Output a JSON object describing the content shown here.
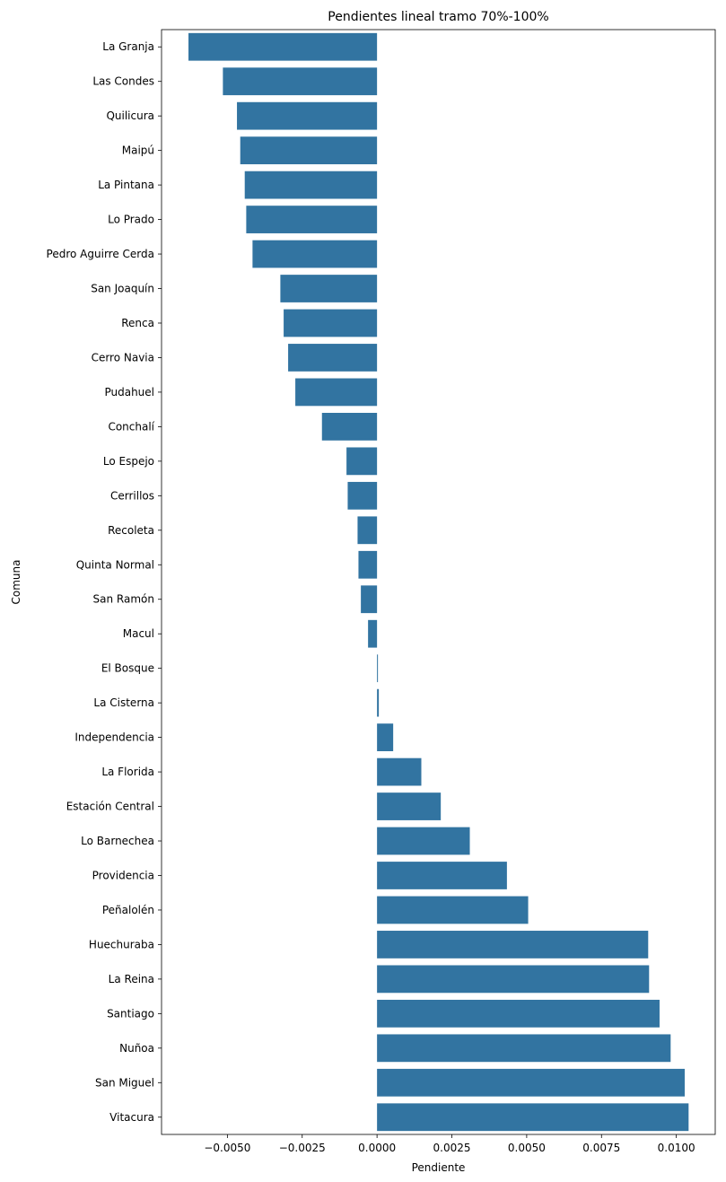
{
  "chart_data": {
    "type": "bar",
    "orientation": "horizontal",
    "title": "Pendientes lineal tramo 70%-100%",
    "xlabel": "Pendiente",
    "ylabel": "Comuna",
    "xlim": [
      -0.0072,
      0.0113
    ],
    "x_ticks": [
      -0.005,
      -0.0025,
      0.0,
      0.0025,
      0.005,
      0.0075,
      0.01
    ],
    "x_tick_labels": [
      "−0.0050",
      "−0.0025",
      "0.0000",
      "0.0025",
      "0.0050",
      "0.0075",
      "0.0100"
    ],
    "grid": false,
    "bar_color": "#3274a1",
    "categories": [
      "La Granja",
      "Las Condes",
      "Quilicura",
      "Maipú",
      "La Pintana",
      "Lo Prado",
      "Pedro Aguirre Cerda",
      "San Joaquín",
      "Renca",
      "Cerro Navia",
      "Pudahuel",
      "Conchalí",
      "Lo Espejo",
      "Cerrillos",
      "Recoleta",
      "Quinta Normal",
      "San Ramón",
      "Macul",
      "El Bosque",
      "La Cisterna",
      "Independencia",
      "La Florida",
      "Estación Central",
      "Lo Barnechea",
      "Providencia",
      "Peñalolén",
      "Huechuraba",
      "La Reina",
      "Santiago",
      "Nuñoa",
      "San Miguel",
      "Vitacura"
    ],
    "values": [
      -0.0063,
      -0.00515,
      -0.00468,
      -0.00457,
      -0.00442,
      -0.00437,
      -0.00416,
      -0.00323,
      -0.00312,
      -0.00297,
      -0.00273,
      -0.00184,
      -0.00102,
      -0.00098,
      -0.00065,
      -0.00062,
      -0.00054,
      -0.0003,
      3e-05,
      6e-05,
      0.00054,
      0.00148,
      0.00213,
      0.0031,
      0.00434,
      0.00505,
      0.00906,
      0.00909,
      0.00944,
      0.00981,
      0.01028,
      0.01041
    ]
  }
}
